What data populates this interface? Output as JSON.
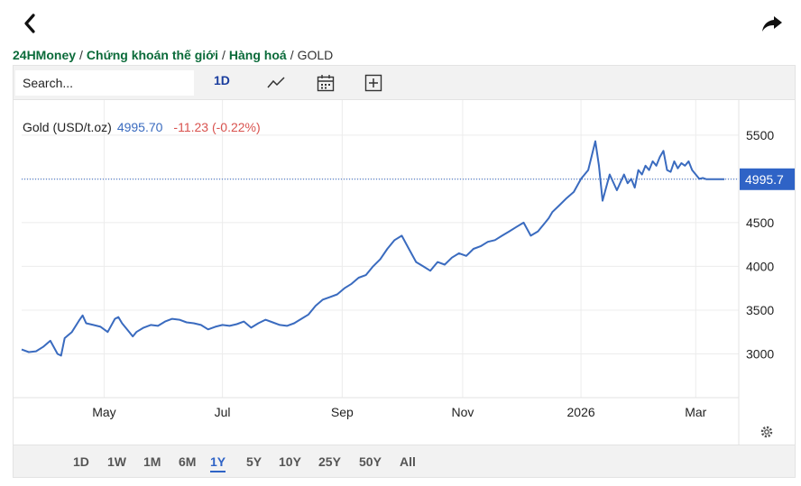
{
  "breadcrumb": {
    "items": [
      "24HMoney",
      "Chứng khoán thế giới",
      "Hàng hoá"
    ],
    "current": "GOLD",
    "separator": "/"
  },
  "toolbar": {
    "search_placeholder": "Search...",
    "interval": "1D"
  },
  "legend": {
    "symbol": "Gold (USD/t.oz)",
    "price": "4995.70",
    "change": "-11.23 (-0.22%)"
  },
  "ranges": {
    "items": [
      "1D",
      "1W",
      "1M",
      "6M",
      "1Y",
      "5Y",
      "10Y",
      "25Y",
      "50Y",
      "All"
    ],
    "active": "1Y"
  },
  "colors": {
    "line": "#3a6bbf",
    "badge": "#2f63c6",
    "down": "#d9534f",
    "brand": "#0b6b3a"
  },
  "chart_data": {
    "type": "line",
    "yticks": [
      3000,
      3500,
      4000,
      4500,
      5000,
      5500
    ],
    "ylim": [
      2500,
      5900
    ],
    "xlim": [
      0,
      100
    ],
    "xticks": [
      {
        "label": "May",
        "x": 11.5
      },
      {
        "label": "Jul",
        "x": 28
      },
      {
        "label": "Sep",
        "x": 44.7
      },
      {
        "label": "Nov",
        "x": 61.5
      },
      {
        "label": "2026",
        "x": 78
      },
      {
        "label": "Mar",
        "x": 94
      }
    ],
    "last_price_label": "4995.7",
    "last_price": 4995.7,
    "series": [
      {
        "x": [
          0,
          1,
          2,
          3,
          4,
          5,
          5.5,
          6,
          7,
          8,
          8.5,
          9,
          10,
          11,
          12,
          13,
          13.5,
          14,
          15,
          15.5,
          16,
          17,
          18,
          19,
          20,
          21,
          22,
          23,
          24,
          25,
          26,
          27,
          28,
          29,
          30,
          31,
          32,
          33,
          34,
          35,
          36,
          37,
          38,
          39,
          40,
          41,
          42,
          43,
          44,
          45,
          46,
          47,
          48,
          49,
          50,
          51,
          52,
          53,
          54,
          55,
          56,
          57,
          57.5,
          58,
          59,
          60,
          61,
          62,
          63,
          64,
          65,
          66,
          67,
          68,
          69,
          70,
          71,
          72,
          73,
          73.5,
          74,
          75,
          76,
          77,
          78,
          79,
          80,
          80.5,
          81,
          82,
          83,
          84,
          84.5,
          85,
          85.5,
          86,
          86.5,
          87,
          87.5,
          88,
          88.5,
          89,
          89.5,
          90,
          90.5,
          91,
          91.5,
          92,
          92.5,
          93,
          93.5,
          94,
          94.5,
          95,
          95.5,
          96,
          96.5,
          97,
          97.5,
          98
        ],
        "values": [
          3050,
          3020,
          3030,
          3080,
          3150,
          3000,
          2980,
          3180,
          3250,
          3380,
          3440,
          3350,
          3330,
          3310,
          3250,
          3400,
          3420,
          3350,
          3250,
          3200,
          3250,
          3300,
          3330,
          3320,
          3370,
          3400,
          3390,
          3360,
          3350,
          3330,
          3280,
          3310,
          3330,
          3320,
          3340,
          3370,
          3300,
          3350,
          3390,
          3360,
          3330,
          3320,
          3350,
          3400,
          3450,
          3550,
          3620,
          3650,
          3680,
          3750,
          3800,
          3870,
          3900,
          4000,
          4080,
          4200,
          4300,
          4350,
          4200,
          4050,
          4000,
          3950,
          4000,
          4050,
          4020,
          4100,
          4150,
          4120,
          4200,
          4230,
          4280,
          4300,
          4350,
          4400,
          4450,
          4500,
          4350,
          4400,
          4500,
          4550,
          4620,
          4700,
          4780,
          4850,
          5000,
          5100,
          5430,
          5150,
          4750,
          5050,
          4870,
          5050,
          4950,
          5000,
          4900,
          5100,
          5050,
          5150,
          5100,
          5200,
          5150,
          5250,
          5320,
          5100,
          5080,
          5200,
          5120,
          5180,
          5150,
          5200,
          5100,
          5050,
          5000,
          5010,
          4995.7,
          4996,
          4995.7,
          4995.7,
          4995.7,
          4995.7
        ]
      }
    ]
  }
}
